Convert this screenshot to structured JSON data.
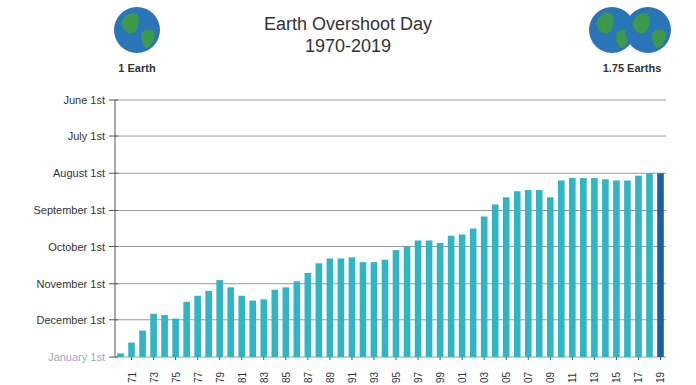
{
  "chart_data": {
    "type": "bar",
    "title": "Earth Overshoot Day",
    "subtitle": "1970-2019",
    "annotations": [
      "1 Earth",
      "1.75 Earths"
    ],
    "categories": [
      null,
      "71",
      null,
      "73",
      null,
      "75",
      null,
      "77",
      null,
      "79",
      null,
      "81",
      null,
      "83",
      null,
      "85",
      null,
      "87",
      null,
      "89",
      null,
      "91",
      null,
      "93",
      null,
      "95",
      null,
      "97",
      null,
      "99",
      null,
      "01",
      null,
      "03",
      null,
      "05",
      null,
      "07",
      null,
      "09",
      null,
      "11",
      null,
      "13",
      null,
      "15",
      null,
      "17",
      null,
      "19"
    ],
    "values": [
      363,
      354,
      344,
      330,
      331,
      334,
      320,
      315,
      311,
      302,
      308,
      315,
      319,
      318,
      310,
      308,
      303,
      296,
      288,
      284,
      284,
      283,
      287,
      287,
      285,
      277,
      274,
      269,
      269,
      271,
      265,
      264,
      259,
      249,
      239,
      233,
      228,
      227,
      227,
      233,
      219,
      217,
      217,
      217,
      218,
      219,
      219,
      215,
      213,
      213
    ],
    "colors": [
      "#2fb5c4",
      "#2fb5c4",
      "#2fb5c4",
      "#2fb5c4",
      "#2fb5c4",
      "#2fb5c4",
      "#2fb5c4",
      "#2fb5c4",
      "#2fb5c4",
      "#2fb5c4",
      "#2fb5c4",
      "#2fb5c4",
      "#2fb5c4",
      "#2fb5c4",
      "#2fb5c4",
      "#2fb5c4",
      "#2fb5c4",
      "#2fb5c4",
      "#2fb5c4",
      "#2fb5c4",
      "#2fb5c4",
      "#2fb5c4",
      "#2fb5c4",
      "#2fb5c4",
      "#2fb5c4",
      "#2fb5c4",
      "#2fb5c4",
      "#2fb5c4",
      "#2fb5c4",
      "#2fb5c4",
      "#2fb5c4",
      "#2fb5c4",
      "#2fb5c4",
      "#2fb5c4",
      "#2fb5c4",
      "#2fb5c4",
      "#2fb5c4",
      "#2fb5c4",
      "#2fb5c4",
      "#2fb5c4",
      "#2fb5c4",
      "#2fb5c4",
      "#2fb5c4",
      "#2fb5c4",
      "#2fb5c4",
      "#2fb5c4",
      "#2fb5c4",
      "#2fb5c4",
      "#2fb5c4",
      "#1d5f9e"
    ],
    "ylim": [
      366,
      152
    ],
    "yticks": [
      {
        "value": 366,
        "label": "January 1st"
      },
      {
        "value": 335,
        "label": "December 1st"
      },
      {
        "value": 305,
        "label": "November 1st"
      },
      {
        "value": 274,
        "label": "October 1st"
      },
      {
        "value": 244,
        "label": "September 1st"
      },
      {
        "value": 213,
        "label": "August 1st"
      },
      {
        "value": 182,
        "label": "July 1st"
      },
      {
        "value": 152,
        "label": "June 1st"
      }
    ],
    "grid": true
  }
}
